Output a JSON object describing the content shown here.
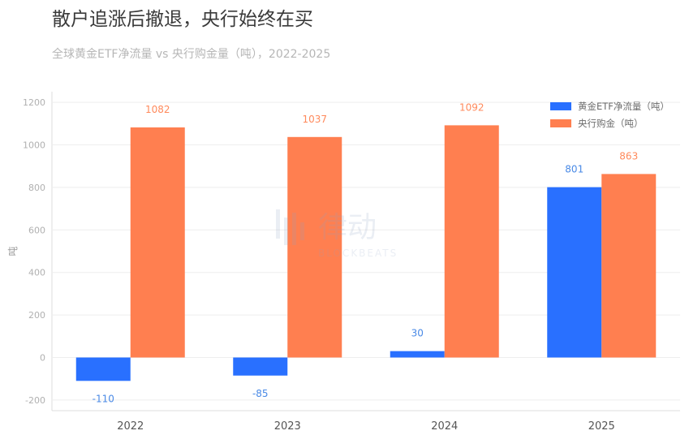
{
  "chart_data": {
    "type": "bar",
    "title": "散户追涨后撤退，央行始终在买",
    "subtitle": "全球黄金ETF净流量 vs 央行购金量（吨），2022-2025",
    "xlabel": "",
    "ylabel": "吨",
    "ylim": [
      -250,
      1250
    ],
    "yticks": [
      -200,
      0,
      200,
      400,
      600,
      800,
      1000,
      1200
    ],
    "categories": [
      "2022",
      "2023",
      "2024",
      "2025"
    ],
    "grid": true,
    "legend_position": "top-right",
    "series": [
      {
        "name": "黄金ETF净流量（吨）",
        "color": "#2970ff",
        "label_color": "#4a8ae6",
        "values": [
          -110,
          -85,
          30,
          801
        ]
      },
      {
        "name": "央行购金（吨）",
        "color": "#ff7f50",
        "label_color": "#ff8a5c",
        "values": [
          1082,
          1037,
          1092,
          863
        ]
      }
    ]
  },
  "watermark": {
    "text": "律动",
    "subtext": "BLOCKBEATS"
  }
}
